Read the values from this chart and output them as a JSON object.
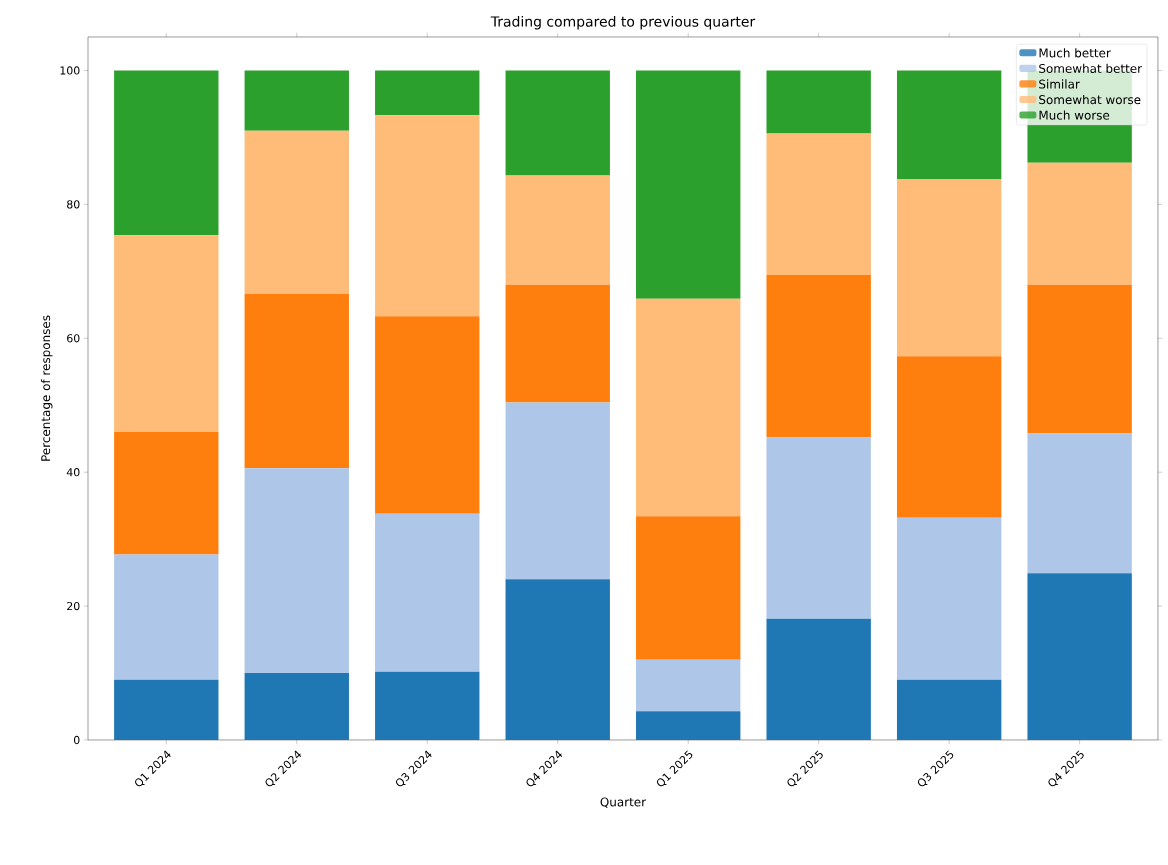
{
  "chart_data": {
    "type": "bar",
    "stacked": true,
    "title": "Trading compared to previous quarter",
    "xlabel": "Quarter",
    "ylabel": "Percentage of responses",
    "categories": [
      "Q1 2024",
      "Q2 2024",
      "Q3 2024",
      "Q4 2024",
      "Q1 2025",
      "Q2 2025",
      "Q3 2025",
      "Q4 2025"
    ],
    "series": [
      {
        "name": "Much better",
        "color": "#1f77b4",
        "values": [
          9.0,
          10.0,
          10.2,
          24.0,
          4.3,
          18.1,
          9.0,
          24.9
        ]
      },
      {
        "name": "Somewhat better",
        "color": "#aec7e8",
        "values": [
          18.7,
          30.6,
          23.6,
          26.4,
          7.7,
          27.1,
          24.2,
          20.9
        ]
      },
      {
        "name": "Similar",
        "color": "#ff7f0e",
        "values": [
          18.3,
          26.0,
          29.5,
          17.6,
          21.4,
          24.3,
          24.1,
          22.2
        ]
      },
      {
        "name": "Somewhat worse",
        "color": "#ffbb78",
        "values": [
          29.4,
          24.4,
          30.0,
          16.3,
          32.5,
          21.1,
          26.5,
          18.2
        ]
      },
      {
        "name": "Much worse",
        "color": "#2ca02c",
        "values": [
          24.6,
          9.0,
          6.7,
          15.7,
          34.1,
          9.4,
          16.2,
          13.8
        ]
      }
    ],
    "ylim": [
      0,
      105
    ],
    "yticks": [
      0,
      20,
      40,
      60,
      80,
      100
    ],
    "legend": "top right",
    "grid": false
  }
}
